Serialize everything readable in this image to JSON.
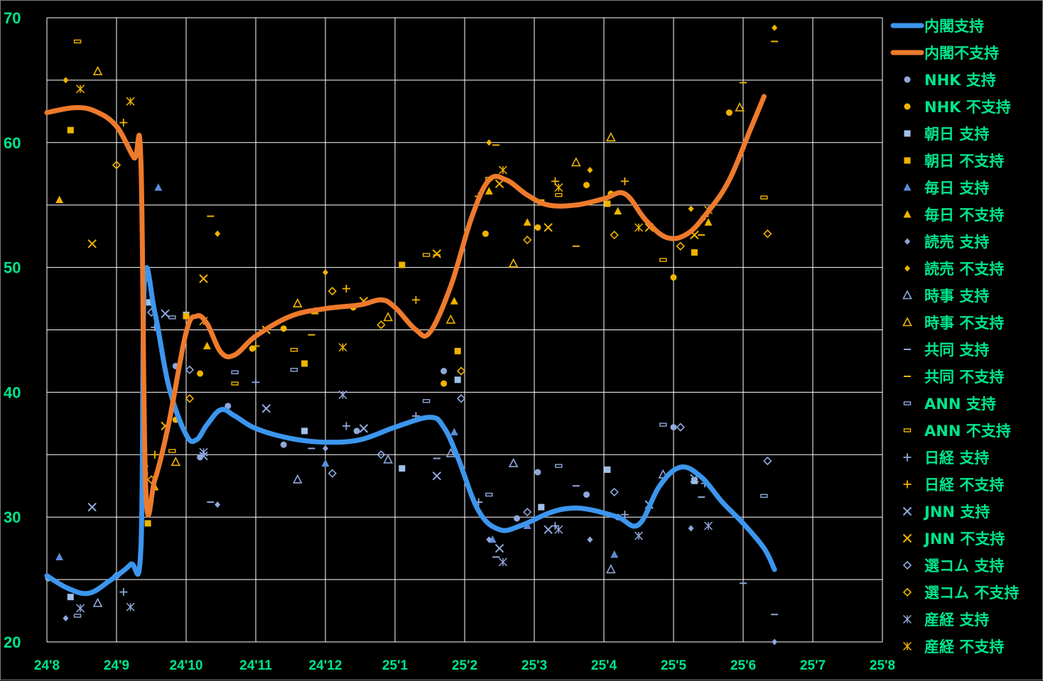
{
  "chart_data": {
    "type": "scatter",
    "title": "",
    "xlabel": "",
    "ylabel": "",
    "x_tick_labels": [
      "24'8",
      "24'9",
      "24'10",
      "24'11",
      "24'12",
      "25'1",
      "25'2",
      "25'3",
      "25'4",
      "25'5",
      "25'6",
      "25'7",
      "25'8"
    ],
    "y_ticks": [
      20,
      30,
      40,
      50,
      60,
      70
    ],
    "ylim": [
      20,
      70
    ],
    "x_range_months": [
      0,
      12
    ],
    "grid": true,
    "legend_position": "right",
    "colors": {
      "support": "#3c96ee",
      "disapprove": "#ee7a2c",
      "support_marker": "#8fa8dc",
      "disapprove_marker": "#f0b400",
      "text": "#00e58b",
      "grid": "#ffffff"
    },
    "lines": [
      {
        "name": "内閣支持",
        "color": "#3c96ee",
        "points": [
          [
            0,
            25.3
          ],
          [
            0.3,
            24.3
          ],
          [
            0.6,
            23.9
          ],
          [
            0.9,
            24.9
          ],
          [
            1.2,
            26.2
          ],
          [
            1.35,
            27.5
          ],
          [
            1.4,
            48.7
          ],
          [
            1.55,
            46.4
          ],
          [
            1.75,
            40.5
          ],
          [
            2,
            36.6
          ],
          [
            2.15,
            36.2
          ],
          [
            2.3,
            37.4
          ],
          [
            2.5,
            38.6
          ],
          [
            2.7,
            38.1
          ],
          [
            3,
            37.1
          ],
          [
            3.5,
            36.3
          ],
          [
            4,
            36.0
          ],
          [
            4.5,
            36.2
          ],
          [
            5,
            37.2
          ],
          [
            5.5,
            38.0
          ],
          [
            5.7,
            37.2
          ],
          [
            5.9,
            34.8
          ],
          [
            6.2,
            30.5
          ],
          [
            6.5,
            29.0
          ],
          [
            6.8,
            29.3
          ],
          [
            7.2,
            30.3
          ],
          [
            7.5,
            30.7
          ],
          [
            7.8,
            30.6
          ],
          [
            8.2,
            30.0
          ],
          [
            8.5,
            29.4
          ],
          [
            8.8,
            32.5
          ],
          [
            9.1,
            34.0
          ],
          [
            9.4,
            33.2
          ],
          [
            9.7,
            31.2
          ],
          [
            10,
            29.5
          ],
          [
            10.3,
            27.5
          ],
          [
            10.45,
            25.8
          ]
        ]
      },
      {
        "name": "内閣不支持",
        "color": "#ee7a2c",
        "points": [
          [
            0,
            62.4
          ],
          [
            0.4,
            62.8
          ],
          [
            0.7,
            62.5
          ],
          [
            1,
            61.3
          ],
          [
            1.25,
            58.8
          ],
          [
            1.35,
            58.5
          ],
          [
            1.42,
            32.2
          ],
          [
            1.55,
            33.0
          ],
          [
            1.75,
            37.5
          ],
          [
            2,
            44.8
          ],
          [
            2.15,
            46.1
          ],
          [
            2.3,
            45.5
          ],
          [
            2.5,
            43.2
          ],
          [
            2.7,
            43.0
          ],
          [
            3,
            44.5
          ],
          [
            3.5,
            46.1
          ],
          [
            4,
            46.7
          ],
          [
            4.5,
            47.0
          ],
          [
            4.8,
            47.4
          ],
          [
            5,
            46.8
          ],
          [
            5.3,
            45.0
          ],
          [
            5.5,
            44.8
          ],
          [
            5.8,
            48.5
          ],
          [
            6.1,
            54.0
          ],
          [
            6.35,
            57.0
          ],
          [
            6.6,
            57.0
          ],
          [
            6.9,
            55.8
          ],
          [
            7.2,
            55.0
          ],
          [
            7.6,
            55.0
          ],
          [
            8,
            55.5
          ],
          [
            8.3,
            55.9
          ],
          [
            8.6,
            53.8
          ],
          [
            8.9,
            52.4
          ],
          [
            9.2,
            52.7
          ],
          [
            9.5,
            54.5
          ],
          [
            9.8,
            57.0
          ],
          [
            10.1,
            61.0
          ],
          [
            10.3,
            63.7
          ]
        ]
      }
    ],
    "series": [
      {
        "name": "NHK 支持",
        "marker": "circle",
        "color": "#8fa8dc",
        "x": [
          0.02,
          1.85,
          2.2,
          2.6,
          3.4,
          4.45,
          5.7,
          6.75,
          7.05,
          7.75,
          8.2,
          9.0
        ],
        "y": [
          25.1,
          42.1,
          34.8,
          38.9,
          35.8,
          36.9,
          41.7,
          29.9,
          33.6,
          31.8,
          30.0,
          37.2
        ]
      },
      {
        "name": "NHK 不支持",
        "marker": "circle",
        "color": "#f0b400",
        "x": [
          1.85,
          2.2,
          2.95,
          3.4,
          4.4,
          5.7,
          6.3,
          7.05,
          7.75,
          8.1,
          9.0,
          9.8
        ],
        "y": [
          37.8,
          41.5,
          43.5,
          45.1,
          46.8,
          40.7,
          52.7,
          53.2,
          56.6,
          55.9,
          49.2,
          62.4
        ]
      },
      {
        "name": "朝日 支持",
        "marker": "square",
        "color": "#9fc1e8",
        "x": [
          0.34,
          1.45,
          2.0,
          3.7,
          5.1,
          5.9,
          7.1,
          8.05,
          9.3
        ],
        "y": [
          23.6,
          47.2,
          46.2,
          36.9,
          33.9,
          41.0,
          30.8,
          33.8,
          32.9
        ]
      },
      {
        "name": "朝日 不支持",
        "marker": "square",
        "color": "#f0b400",
        "x": [
          0.34,
          1.45,
          2.0,
          3.7,
          5.1,
          5.9,
          7.1,
          8.05,
          9.3
        ],
        "y": [
          61.0,
          29.5,
          46.1,
          42.3,
          50.2,
          43.3,
          55.2,
          55.1,
          51.2
        ]
      },
      {
        "name": "毎日 支持",
        "marker": "triangle",
        "color": "#5c8bd8",
        "x": [
          0.18,
          1.6,
          4.0,
          5.85,
          6.4,
          6.9,
          8.15
        ],
        "y": [
          26.8,
          56.4,
          34.3,
          36.8,
          28.2,
          29.3,
          27.0
        ]
      },
      {
        "name": "毎日 不支持",
        "marker": "triangle",
        "color": "#f0b400",
        "x": [
          0.18,
          1.55,
          2.3,
          3.85,
          5.85,
          6.35,
          6.9,
          8.2,
          9.5
        ],
        "y": [
          55.4,
          32.4,
          43.7,
          46.5,
          47.3,
          56.1,
          53.6,
          54.5,
          53.6
        ]
      },
      {
        "name": "読売 支持",
        "marker": "diamond",
        "color": "#8fa8dc",
        "x": [
          0.27,
          2.45,
          4.0,
          6.35,
          7.8,
          9.25,
          10.45
        ],
        "y": [
          21.9,
          31.0,
          35.5,
          28.2,
          28.2,
          29.1,
          20.0
        ]
      },
      {
        "name": "読売 不支持",
        "marker": "diamond",
        "color": "#f0b400",
        "x": [
          0.27,
          2.45,
          4.0,
          6.35,
          7.8,
          9.25,
          10.45
        ],
        "y": [
          65.0,
          52.7,
          49.6,
          60.0,
          57.8,
          54.7,
          69.2
        ]
      },
      {
        "name": "時事 支持",
        "marker": "triangle-open",
        "color": "#8fa8dc",
        "x": [
          0.73,
          3.6,
          4.9,
          5.8,
          6.7,
          8.1,
          8.85
        ],
        "y": [
          23.1,
          33.0,
          34.6,
          35.1,
          34.3,
          25.8,
          33.4
        ]
      },
      {
        "name": "時事 不支持",
        "marker": "triangle-open",
        "color": "#f0b400",
        "x": [
          0.73,
          1.85,
          3.6,
          4.9,
          5.8,
          6.7,
          7.6,
          8.1,
          9.95
        ],
        "y": [
          65.7,
          34.4,
          47.1,
          46.0,
          45.8,
          50.3,
          58.4,
          60.4,
          62.8
        ]
      },
      {
        "name": "共同 支持",
        "marker": "dash",
        "color": "#8fa8dc",
        "x": [
          2.35,
          3.8,
          5.6,
          6.45,
          7.6,
          9.4,
          10.0,
          10.45
        ],
        "y": [
          31.2,
          35.5,
          34.7,
          26.8,
          32.5,
          31.6,
          24.7,
          22.2
        ]
      },
      {
        "name": "共同 不支持",
        "marker": "dash",
        "color": "#f0b400",
        "x": [
          2.35,
          3.8,
          5.6,
          6.45,
          7.6,
          9.4,
          10.0,
          10.45
        ],
        "y": [
          54.1,
          44.6,
          51.0,
          59.8,
          51.7,
          52.6,
          64.8,
          68.1
        ]
      },
      {
        "name": "ANN 支持",
        "marker": "dash-box",
        "color": "#8fa8dc",
        "x": [
          0.44,
          1.8,
          2.7,
          3.55,
          5.45,
          6.35,
          7.35,
          8.85,
          10.3
        ],
        "y": [
          22.1,
          46.0,
          41.6,
          41.8,
          39.3,
          31.8,
          34.1,
          37.4,
          31.7
        ]
      },
      {
        "name": "ANN 不支持",
        "marker": "dash-box",
        "color": "#f0b400",
        "x": [
          0.44,
          1.8,
          2.7,
          3.55,
          5.45,
          6.35,
          7.35,
          8.85,
          10.3
        ],
        "y": [
          68.1,
          35.3,
          40.7,
          43.4,
          51.0,
          57.1,
          55.8,
          50.6,
          55.6
        ]
      },
      {
        "name": "日経 支持",
        "marker": "plus",
        "color": "#8fa8dc",
        "x": [
          1.1,
          1.55,
          3.0,
          4.3,
          5.3,
          6.2,
          7.3,
          8.3,
          9.45
        ],
        "y": [
          24.0,
          45.2,
          40.8,
          37.3,
          38.1,
          31.2,
          29.3,
          30.2,
          32.7
        ]
      },
      {
        "name": "日経 不支持",
        "marker": "plus",
        "color": "#f0b400",
        "x": [
          1.1,
          1.55,
          3.0,
          4.3,
          5.3,
          6.2,
          7.3,
          8.3,
          9.45
        ],
        "y": [
          61.6,
          35.0,
          43.7,
          48.3,
          47.4,
          55.7,
          56.9,
          56.9,
          54.1
        ]
      },
      {
        "name": "JNN 支持",
        "marker": "x",
        "color": "#8fa8dc",
        "x": [
          0.65,
          1.7,
          2.25,
          3.15,
          4.55,
          5.6,
          6.5,
          7.2,
          8.65,
          9.3
        ],
        "y": [
          30.8,
          46.3,
          34.9,
          38.7,
          37.1,
          33.3,
          27.5,
          29.0,
          31.0,
          33.1
        ]
      },
      {
        "name": "JNN 不支持",
        "marker": "x",
        "color": "#f0b400",
        "x": [
          0.65,
          1.7,
          2.25,
          3.15,
          4.55,
          5.6,
          6.5,
          7.2,
          8.65,
          9.3
        ],
        "y": [
          51.9,
          37.3,
          49.1,
          45.0,
          47.3,
          51.1,
          56.7,
          53.2,
          53.2,
          52.6
        ]
      },
      {
        "name": "選コム 支持",
        "marker": "diamond-open",
        "color": "#8fa8dc",
        "x": [
          1.0,
          1.5,
          2.05,
          4.1,
          4.8,
          5.95,
          6.9,
          8.15,
          9.1,
          10.35
        ],
        "y": [
          25.3,
          46.4,
          41.8,
          33.5,
          35.0,
          39.5,
          30.4,
          32.0,
          37.2,
          34.5
        ]
      },
      {
        "name": "選コム 不支持",
        "marker": "diamond-open",
        "color": "#f0b400",
        "x": [
          1.0,
          1.5,
          2.05,
          4.1,
          4.8,
          5.95,
          6.9,
          8.15,
          9.1,
          10.35
        ],
        "y": [
          58.2,
          33.0,
          39.5,
          48.1,
          45.4,
          41.7,
          52.2,
          52.6,
          51.7,
          52.7
        ]
      },
      {
        "name": "産経 支持",
        "marker": "star",
        "color": "#8fa8dc",
        "x": [
          0.48,
          1.2,
          1.4,
          2.25,
          4.25,
          6.55,
          7.35,
          8.5,
          9.5
        ],
        "y": [
          22.7,
          22.8,
          33.8,
          35.2,
          39.8,
          26.4,
          29.0,
          28.5,
          29.3
        ]
      },
      {
        "name": "産経 不支持",
        "marker": "star",
        "color": "#f0b400",
        "x": [
          0.48,
          1.2,
          1.4,
          2.25,
          4.25,
          6.55,
          7.35,
          8.5,
          9.5
        ],
        "y": [
          64.3,
          63.3,
          49.2,
          45.7,
          43.6,
          57.8,
          56.4,
          53.2,
          54.6
        ]
      }
    ]
  }
}
